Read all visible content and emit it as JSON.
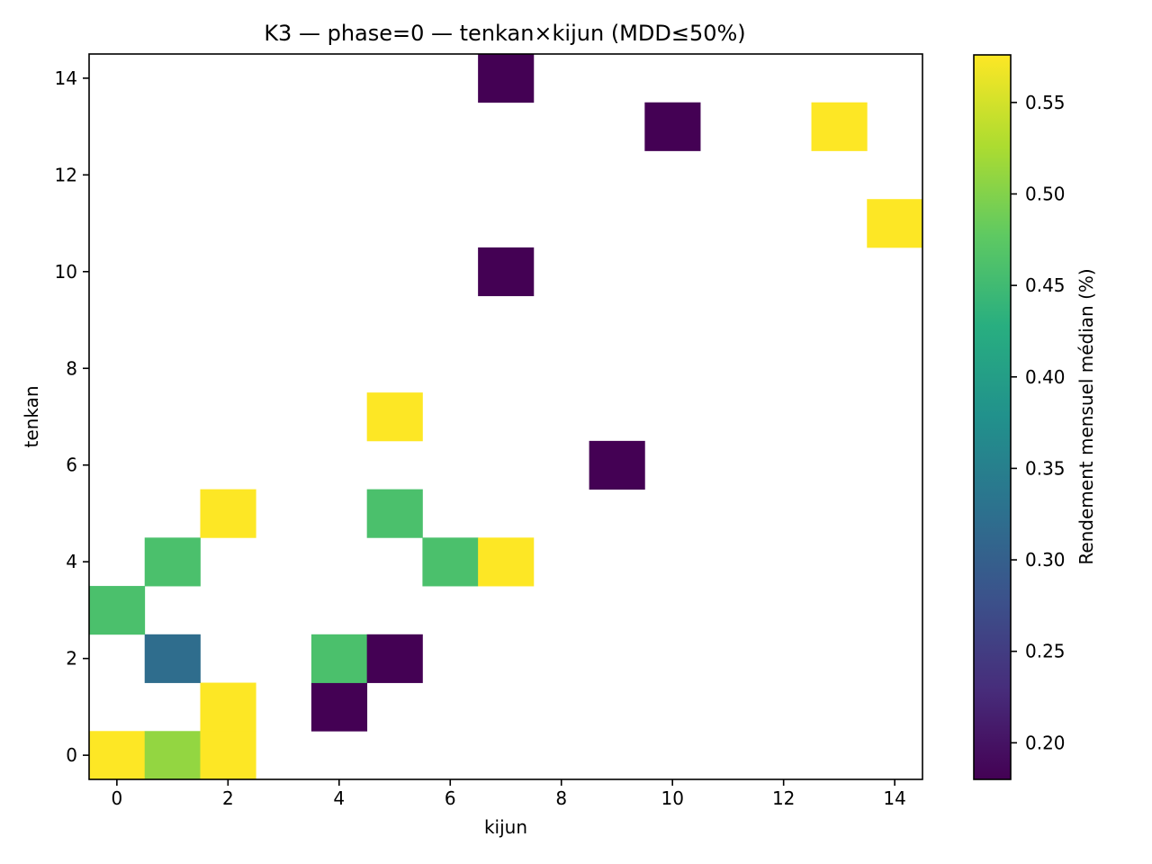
{
  "chart_data": {
    "type": "heatmap",
    "title": "K3 — phase=0 — tenkan×kijun (MDD≤50%)",
    "xlabel": "kijun",
    "ylabel": "tenkan",
    "xlim": [
      -0.5,
      14.5
    ],
    "ylim": [
      -0.5,
      14.5
    ],
    "xticks": [
      0,
      2,
      4,
      6,
      8,
      10,
      12,
      14
    ],
    "yticks": [
      0,
      2,
      4,
      6,
      8,
      10,
      12,
      14
    ],
    "grid": false,
    "colormap": "viridis",
    "colorbar": {
      "label": "Rendement mensuel médian (%)",
      "vmin": 0.18,
      "vmax": 0.576,
      "ticks": [
        0.2,
        0.25,
        0.3,
        0.35,
        0.4,
        0.45,
        0.5,
        0.55
      ],
      "tick_labels": [
        "0.20",
        "0.25",
        "0.30",
        "0.35",
        "0.40",
        "0.45",
        "0.50",
        "0.55"
      ]
    },
    "cells": [
      {
        "x": 0,
        "y": 0,
        "value": 0.576
      },
      {
        "x": 1,
        "y": 0,
        "value": 0.51
      },
      {
        "x": 2,
        "y": 0,
        "value": 0.576
      },
      {
        "x": 2,
        "y": 1,
        "value": 0.576
      },
      {
        "x": 4,
        "y": 1,
        "value": 0.18
      },
      {
        "x": 1,
        "y": 2,
        "value": 0.32
      },
      {
        "x": 4,
        "y": 2,
        "value": 0.46
      },
      {
        "x": 5,
        "y": 2,
        "value": 0.18
      },
      {
        "x": 0,
        "y": 3,
        "value": 0.46
      },
      {
        "x": 1,
        "y": 4,
        "value": 0.46
      },
      {
        "x": 6,
        "y": 4,
        "value": 0.46
      },
      {
        "x": 7,
        "y": 4,
        "value": 0.576
      },
      {
        "x": 2,
        "y": 5,
        "value": 0.576
      },
      {
        "x": 5,
        "y": 5,
        "value": 0.46
      },
      {
        "x": 9,
        "y": 6,
        "value": 0.18
      },
      {
        "x": 5,
        "y": 7,
        "value": 0.576
      },
      {
        "x": 7,
        "y": 10,
        "value": 0.18
      },
      {
        "x": 14,
        "y": 11,
        "value": 0.576
      },
      {
        "x": 10,
        "y": 13,
        "value": 0.18
      },
      {
        "x": 13,
        "y": 13,
        "value": 0.576
      },
      {
        "x": 7,
        "y": 14,
        "value": 0.18
      }
    ]
  }
}
